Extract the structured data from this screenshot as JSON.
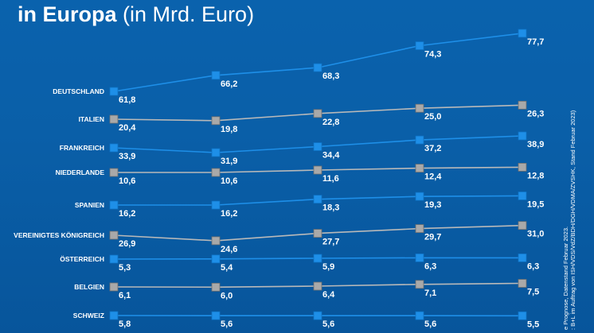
{
  "header": {
    "title_bold": "in Europa",
    "title_light": "(in Mrd. Euro)"
  },
  "source_note": {
    "line1": "e Prognose, Datenstand Februar 2023.",
    "line2": ": B+L im Auftrag von ISH/VDS/VdZ/BDH/DGH/VDMA/ZVSHK, Stand Februar 2023)"
  },
  "colors": {
    "background": "#0a5fa8",
    "blue_series": "#1e8fe8",
    "gray_series": "#b9b9b9",
    "text": "#ffffff"
  },
  "chart_data": {
    "type": "line",
    "title": "in Europa (in Mrd. Euro)",
    "xlabel": "",
    "ylabel": "Mrd. Euro",
    "points_per_series": 5,
    "series": [
      {
        "name": "DEUTSCHLAND",
        "style": "blue",
        "values": [
          61.8,
          66.2,
          68.3,
          74.3,
          77.7
        ],
        "labels": [
          "61,8",
          "66,2",
          "68,3",
          "74,3",
          "77,7"
        ]
      },
      {
        "name": "ITALIEN",
        "style": "gray",
        "values": [
          20.4,
          19.8,
          22.8,
          25.0,
          26.3
        ],
        "labels": [
          "20,4",
          "19,8",
          "22,8",
          "25,0",
          "26,3"
        ]
      },
      {
        "name": "FRANKREICH",
        "style": "blue",
        "values": [
          33.9,
          31.9,
          34.4,
          37.2,
          38.9
        ],
        "labels": [
          "33,9",
          "31,9",
          "34,4",
          "37,2",
          "38,9"
        ]
      },
      {
        "name": "NIEDERLANDE",
        "style": "gray",
        "values": [
          10.6,
          10.6,
          11.6,
          12.4,
          12.8
        ],
        "labels": [
          "10,6",
          "10,6",
          "11,6",
          "12,4",
          "12,8"
        ]
      },
      {
        "name": "SPANIEN",
        "style": "blue",
        "values": [
          16.2,
          16.2,
          18.3,
          19.3,
          19.5
        ],
        "labels": [
          "16,2",
          "16,2",
          "18,3",
          "19,3",
          "19,5"
        ]
      },
      {
        "name": "VEREINIGTES KÖNIGREICH",
        "style": "gray",
        "values": [
          26.9,
          24.6,
          27.7,
          29.7,
          31.0
        ],
        "labels": [
          "26,9",
          "24,6",
          "27,7",
          "29,7",
          "31,0"
        ]
      },
      {
        "name": "ÖSTERREICH",
        "style": "blue",
        "values": [
          5.3,
          5.4,
          5.9,
          6.3,
          6.3
        ],
        "labels": [
          "5,3",
          "5,4",
          "5,9",
          "6,3",
          "6,3"
        ]
      },
      {
        "name": "BELGIEN",
        "style": "gray",
        "values": [
          6.1,
          6.0,
          6.4,
          7.1,
          7.5
        ],
        "labels": [
          "6,1",
          "6,0",
          "6,4",
          "7,1",
          "7,5"
        ]
      },
      {
        "name": "SCHWEIZ",
        "style": "blue",
        "values": [
          5.8,
          5.6,
          5.6,
          5.6,
          5.5
        ],
        "labels": [
          "5,8",
          "5,6",
          "5,6",
          "5,6",
          "5,5"
        ]
      }
    ]
  }
}
